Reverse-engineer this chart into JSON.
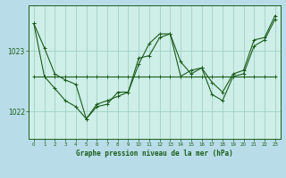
{
  "title": "Graphe pression niveau de la mer (hPa)",
  "bg_color": "#b8dde8",
  "plot_bg_color": "#ceeee8",
  "line_color": "#1a5c1a",
  "grid_color": "#99ccbb",
  "xlim": [
    -0.5,
    23.5
  ],
  "ylim": [
    1021.55,
    1023.75
  ],
  "yticks": [
    1022,
    1023
  ],
  "xticks": [
    0,
    1,
    2,
    3,
    4,
    5,
    6,
    7,
    8,
    9,
    10,
    11,
    12,
    13,
    14,
    15,
    16,
    17,
    18,
    19,
    20,
    21,
    22,
    23
  ],
  "series1": [
    1023.45,
    1023.05,
    1022.62,
    1022.52,
    1022.45,
    1021.88,
    1022.12,
    1022.18,
    1022.25,
    1022.32,
    1022.88,
    1022.92,
    1023.22,
    1023.28,
    1022.58,
    1022.68,
    1022.72,
    1022.48,
    1022.32,
    1022.62,
    1022.68,
    1023.18,
    1023.22,
    1023.58
  ],
  "series2": [
    1022.58,
    1022.58,
    1022.58,
    1022.58,
    1022.58,
    1022.58,
    1022.58,
    1022.58,
    1022.58,
    1022.58,
    1022.58,
    1022.58,
    1022.58,
    1022.58,
    1022.58,
    1022.58,
    1022.58,
    1022.58,
    1022.58,
    1022.58,
    1022.58,
    1022.58,
    1022.58,
    1022.58
  ],
  "series3": [
    1023.45,
    1022.58,
    1022.38,
    1022.18,
    1022.08,
    1021.88,
    1022.08,
    1022.12,
    1022.32,
    1022.32,
    1022.78,
    1023.12,
    1023.28,
    1023.28,
    1022.82,
    1022.62,
    1022.72,
    1022.28,
    1022.18,
    1022.58,
    1022.62,
    1023.08,
    1023.18,
    1023.52
  ]
}
